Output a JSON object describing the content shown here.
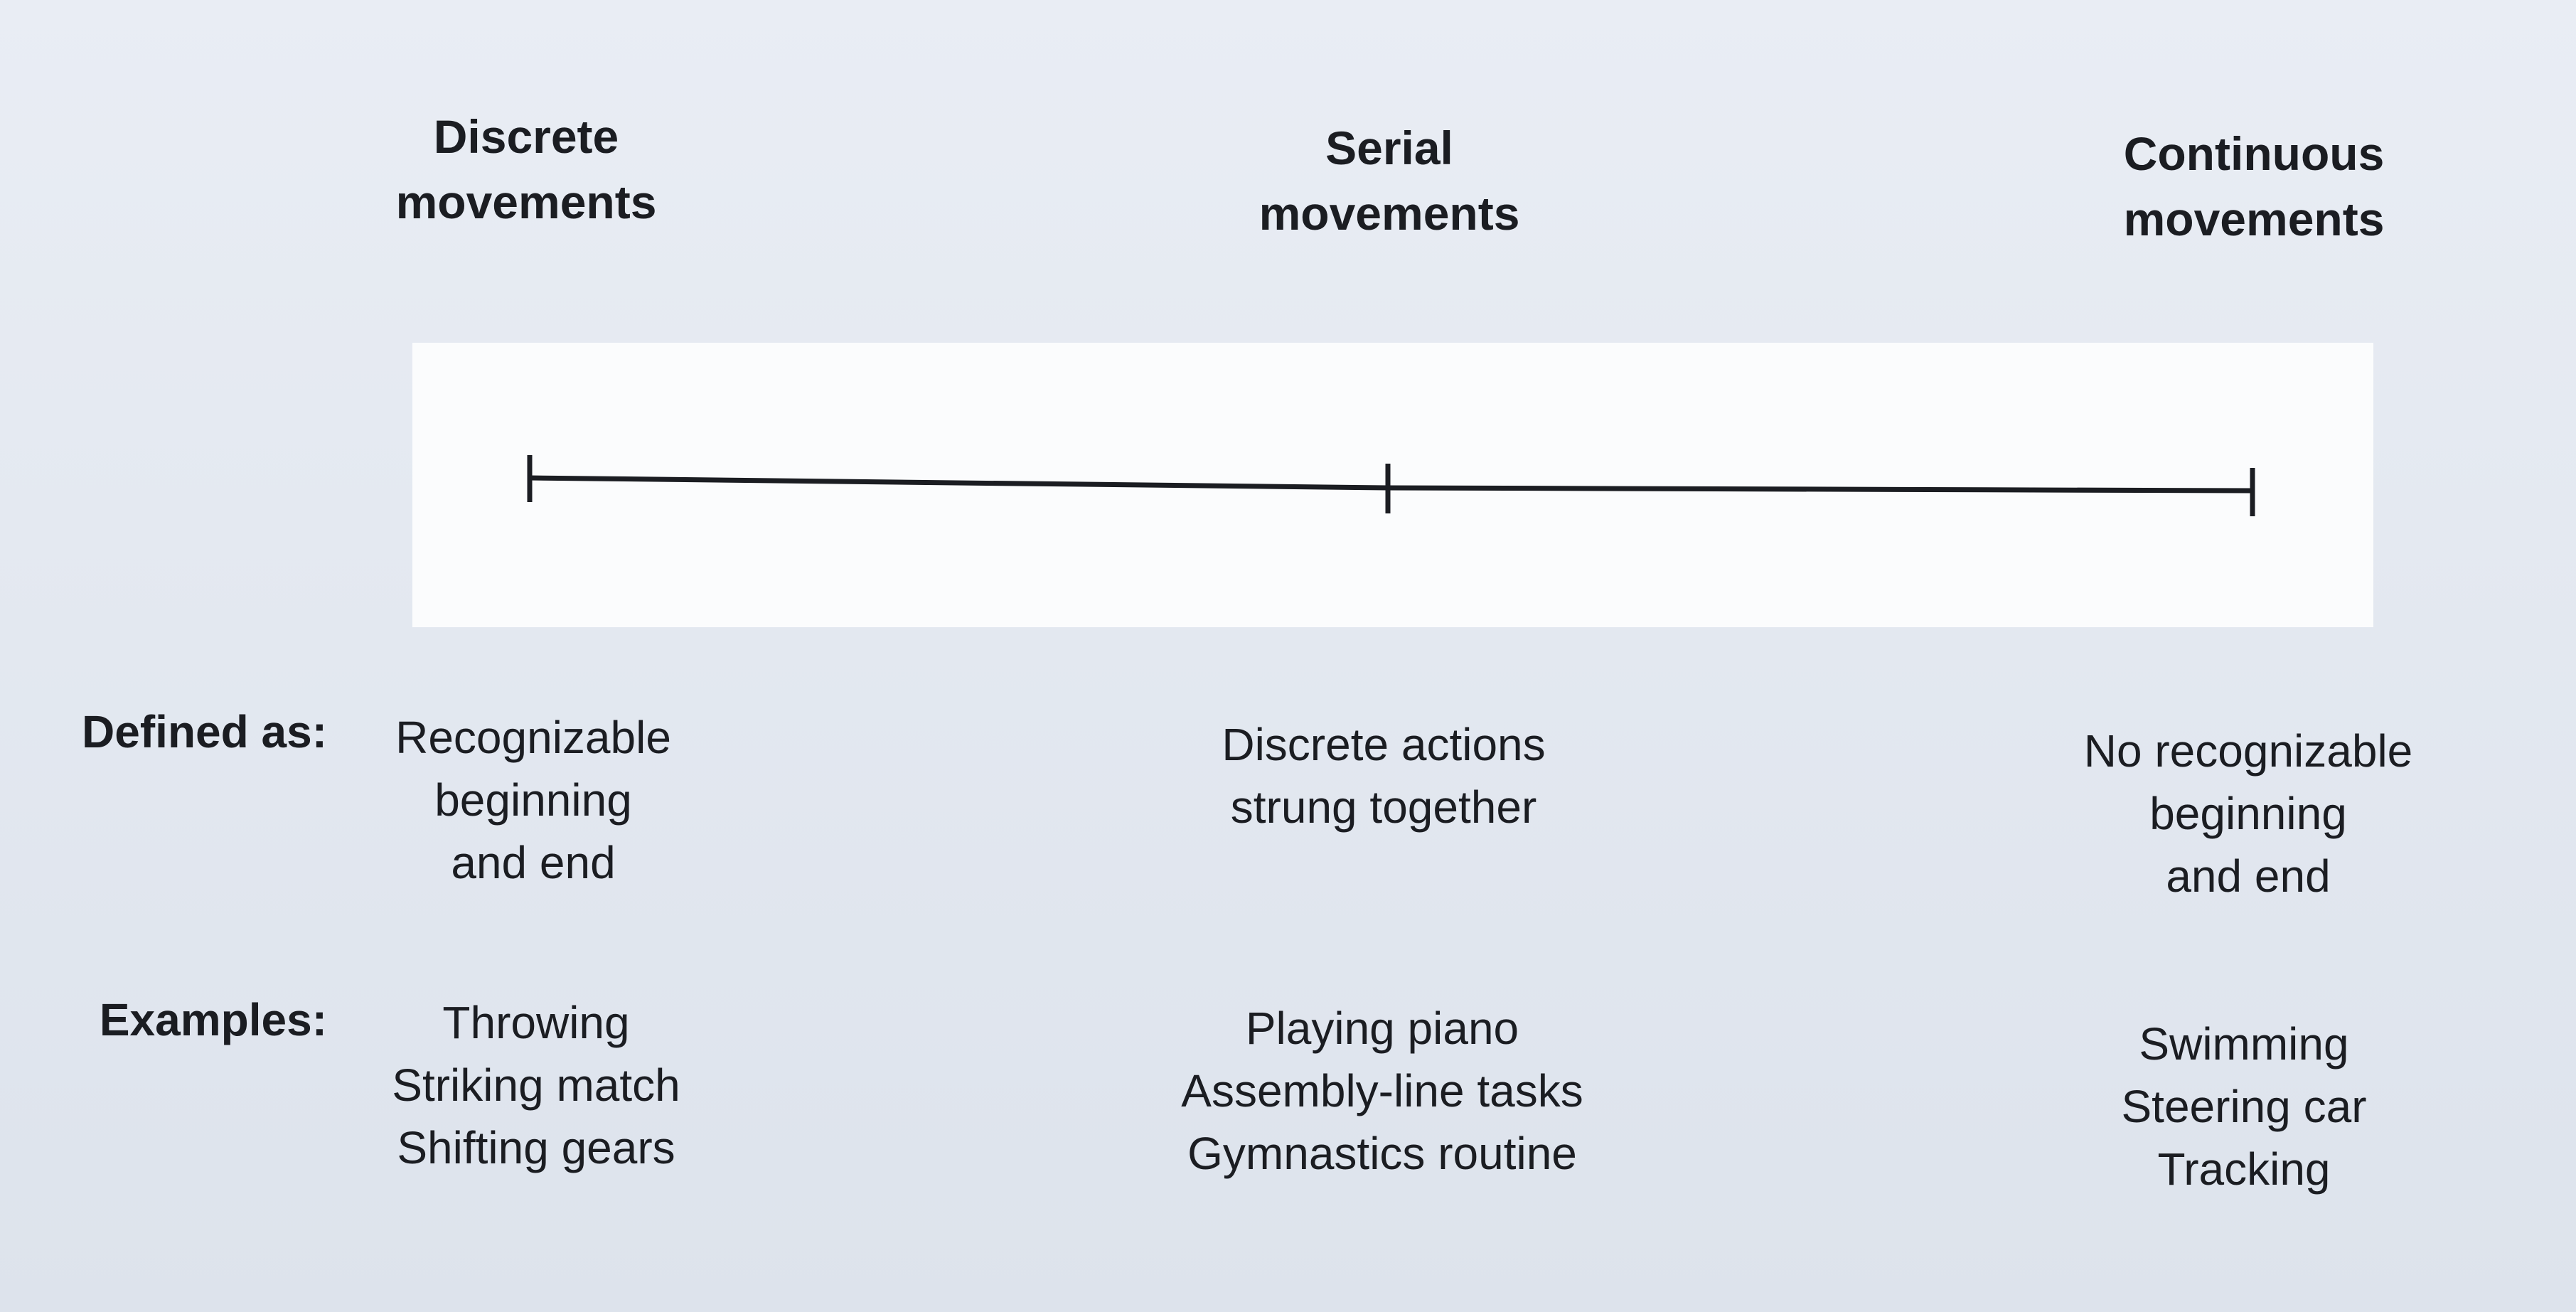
{
  "columns": [
    {
      "key": "discrete",
      "heading": [
        "Discrete",
        "movements"
      ],
      "defined_as": [
        "Recognizable",
        "beginning",
        "and end"
      ],
      "examples": [
        "Throwing",
        "Striking match",
        "Shifting gears"
      ]
    },
    {
      "key": "serial",
      "heading": [
        "Serial",
        "movements"
      ],
      "defined_as": [
        "Discrete actions",
        "strung together"
      ],
      "examples": [
        "Playing piano",
        "Assembly-line tasks",
        "Gymnastics routine"
      ]
    },
    {
      "key": "continuous",
      "heading": [
        "Continuous",
        "movements"
      ],
      "defined_as": [
        "No recognizable",
        "beginning",
        "and end"
      ],
      "examples": [
        "Swimming",
        "Steering car",
        "Tracking"
      ]
    }
  ],
  "row_labels": {
    "defined_as": "Defined as:",
    "examples": "Examples:"
  },
  "colors": {
    "ink": "#1b1d22",
    "panel": "#fbfcfd",
    "page": "#e4e9f1"
  }
}
